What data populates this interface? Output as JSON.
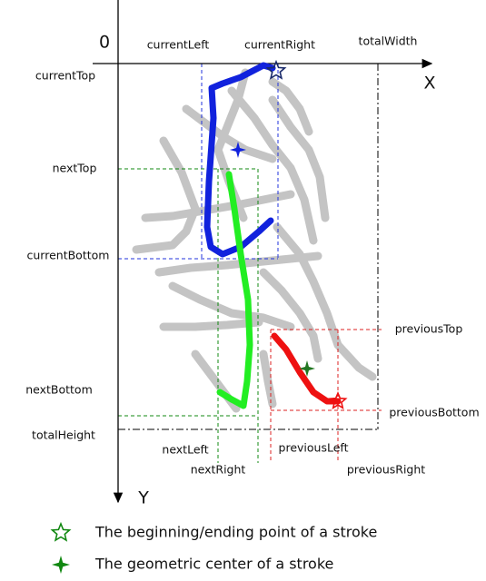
{
  "axes": {
    "origin": "0",
    "x": "X",
    "y": "Y"
  },
  "labels": {
    "currentLeft": "currentLeft",
    "currentRight": "currentRight",
    "totalWidth": "totalWidth",
    "currentTop": "currentTop",
    "nextTop": "nextTop",
    "currentBottom": "currentBottom",
    "previousTop": "previousTop",
    "nextBottom": "nextBottom",
    "previousBottom": "previousBottom",
    "totalHeight": "totalHeight",
    "nextLeft": "nextLeft",
    "previousLeft": "previousLeft",
    "nextRight": "nextRight",
    "previousRight": "previousRight"
  },
  "legend": [
    "The beginning/ending point of a stroke",
    "The geometric center of a stroke"
  ]
}
